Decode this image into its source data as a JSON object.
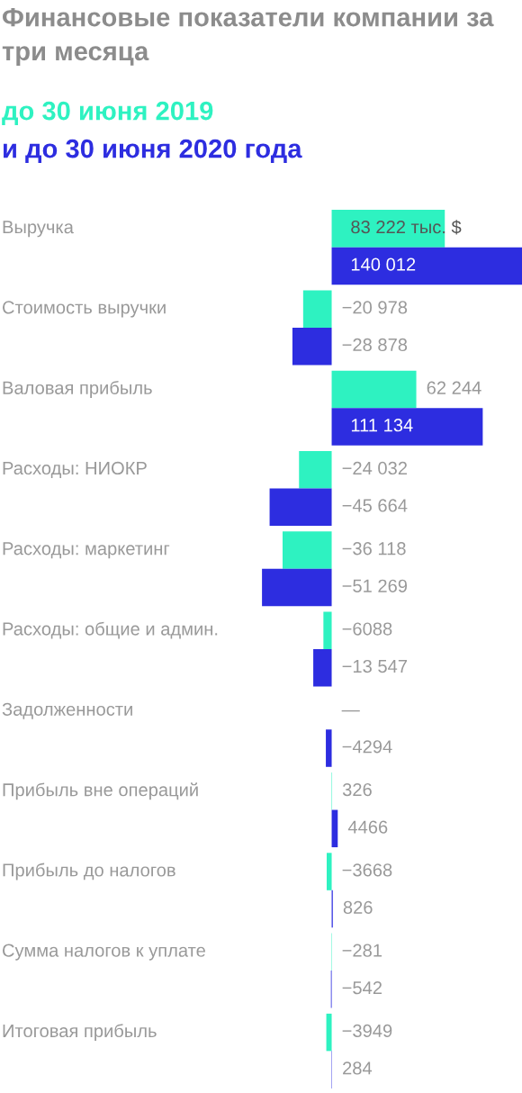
{
  "chart_data": {
    "type": "bar",
    "orientation": "horizontal",
    "title": "Финансовые показатели компании за три месяца",
    "categories": [
      "Выручка",
      "Стоимость выручки",
      "Валовая прибыль",
      "Расходы: НИОКР",
      "Расходы: маркетинг",
      "Расходы: общие и админ.",
      "Задолженности",
      "Прибыль вне операций",
      "Прибыль до налогов",
      "Сумма налогов к уплате",
      "Итоговая прибыль"
    ],
    "xlim": [
      -52000,
      140012
    ],
    "legend": "top left",
    "series": [
      {
        "name": "до 30 июня 2019",
        "color": "#2ef2c1",
        "values": [
          83222,
          -20978,
          62244,
          -24032,
          -36118,
          -6088,
          null,
          326,
          -3668,
          -281,
          -3949
        ],
        "value_labels": [
          "83 222 тыс. $",
          "−20 978",
          "62 244",
          "−24 032",
          "−36 118",
          "−6088",
          "—",
          "326",
          "−3668",
          "−281",
          "−3949"
        ]
      },
      {
        "name": "и до 30 июня 2020 года",
        "color": "#2d2de0",
        "values": [
          140012,
          -28878,
          111134,
          -45664,
          -51269,
          -13547,
          -4294,
          4466,
          826,
          -542,
          284
        ],
        "value_labels": [
          "140 012",
          "−28 878",
          "111 134",
          "−45 664",
          "−51 269",
          "−13 547",
          "−4294",
          "4466",
          "826",
          "−542",
          "284"
        ]
      }
    ]
  }
}
